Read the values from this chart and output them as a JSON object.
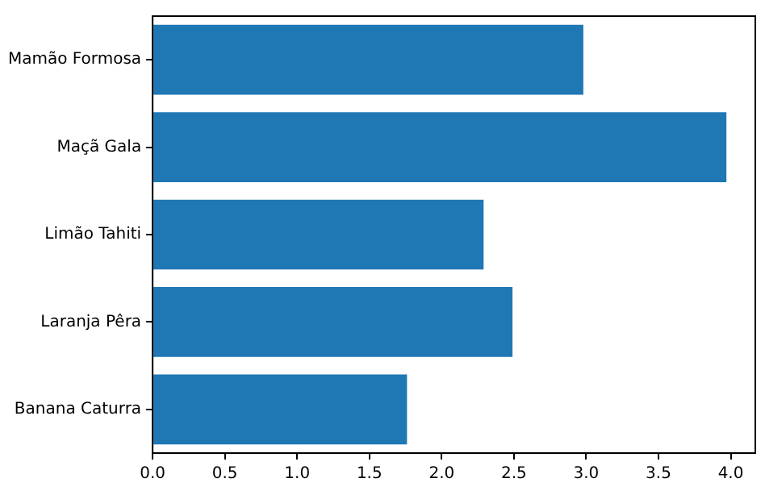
{
  "chart_data": {
    "type": "bar",
    "orientation": "horizontal",
    "categories": [
      "Mamão Formosa",
      "Maçã Gala",
      "Limão Tahiti",
      "Laranja Pêra",
      "Banana Caturra"
    ],
    "values": [
      2.98,
      3.97,
      2.29,
      2.49,
      1.76
    ],
    "color": "#1f77b4",
    "xlim": [
      0,
      4.17
    ],
    "xticks": [
      {
        "value": 0,
        "label": "0.0"
      },
      {
        "value": 0.5,
        "label": "0.5"
      },
      {
        "value": 1,
        "label": "1.0"
      },
      {
        "value": 1.5,
        "label": "1.5"
      },
      {
        "value": 2,
        "label": "2.0"
      },
      {
        "value": 2.5,
        "label": "2.5"
      },
      {
        "value": 3,
        "label": "3.0"
      },
      {
        "value": 3.5,
        "label": "3.5"
      },
      {
        "value": 4,
        "label": "4.0"
      }
    ],
    "grid": false,
    "legend": false
  }
}
